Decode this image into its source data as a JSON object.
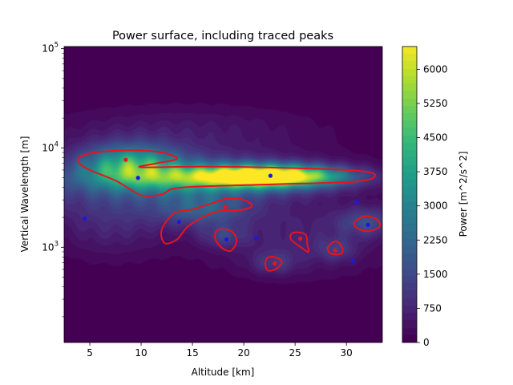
{
  "chart_data": {
    "type": "heatmap",
    "title": "Power surface, including traced peaks",
    "xlabel": "Altitude [km]",
    "ylabel": "Vertical Wavelength [m]",
    "xlim": [
      2.5,
      33.5
    ],
    "ylim": [
      110,
      105000
    ],
    "yscale": "log",
    "x_ticks": [
      5,
      10,
      15,
      20,
      25,
      30
    ],
    "y_ticks": [
      {
        "value": 1000,
        "base": "10",
        "exp": "3"
      },
      {
        "value": 10000,
        "base": "10",
        "exp": "4"
      },
      {
        "value": 100000,
        "base": "10",
        "exp": "5"
      }
    ],
    "grid": false,
    "colorbar": {
      "label": "Power [m^2/s^2]",
      "range": [
        0,
        6500
      ],
      "ticks": [
        0,
        750,
        1500,
        2250,
        3000,
        3750,
        4500,
        5250,
        6000
      ],
      "colormap": "viridis"
    },
    "surface_blobs": [
      {
        "x": 22.5,
        "y": 5200,
        "sx": 4.5,
        "sy": 0.07,
        "amp": 6400
      },
      {
        "x": 17.0,
        "y": 5000,
        "sx": 7.5,
        "sy": 0.1,
        "amp": 3000
      },
      {
        "x": 9.0,
        "y": 6800,
        "sx": 3.2,
        "sy": 0.14,
        "amp": 3300
      },
      {
        "x": 12.0,
        "y": 4600,
        "sx": 10.0,
        "sy": 0.22,
        "amp": 1400
      },
      {
        "x": 16.0,
        "y": 2400,
        "sx": 3.0,
        "sy": 0.12,
        "amp": 1500
      },
      {
        "x": 7.0,
        "y": 1800,
        "sx": 4.0,
        "sy": 0.25,
        "amp": 700
      },
      {
        "x": 25.0,
        "y": 1200,
        "sx": 6.0,
        "sy": 0.25,
        "amp": 700
      },
      {
        "x": 18.0,
        "y": 1300,
        "sx": 1.5,
        "sy": 0.08,
        "amp": 900
      },
      {
        "x": 29.0,
        "y": 950,
        "sx": 1.3,
        "sy": 0.08,
        "amp": 800
      },
      {
        "x": 23.0,
        "y": 700,
        "sx": 1.5,
        "sy": 0.08,
        "amp": 800
      },
      {
        "x": 32.0,
        "y": 1800,
        "sx": 2.0,
        "sy": 0.1,
        "amp": 1300
      },
      {
        "x": 14.0,
        "y": 15000,
        "sx": 9.0,
        "sy": 0.18,
        "amp": 500
      }
    ],
    "traced_peaks_red": [
      {
        "x": 8.5,
        "y": 7600
      },
      {
        "x": 18.2,
        "y": 2550
      },
      {
        "x": 25.5,
        "y": 1220
      },
      {
        "x": 28.9,
        "y": 930
      },
      {
        "x": 23.0,
        "y": 690
      }
    ],
    "traced_peaks_blue": [
      {
        "x": 4.5,
        "y": 1950
      },
      {
        "x": 9.7,
        "y": 5000
      },
      {
        "x": 13.7,
        "y": 1800
      },
      {
        "x": 18.3,
        "y": 1200
      },
      {
        "x": 21.2,
        "y": 1230
      },
      {
        "x": 22.6,
        "y": 5250
      },
      {
        "x": 30.6,
        "y": 730
      },
      {
        "x": 31.0,
        "y": 2850
      },
      {
        "x": 32.1,
        "y": 1680
      }
    ],
    "contours_red": [
      [
        [
          4.0,
          8000
        ],
        [
          5.5,
          9000
        ],
        [
          9.0,
          9500
        ],
        [
          12.0,
          9000
        ],
        [
          13.5,
          7800
        ],
        [
          11.5,
          7000
        ],
        [
          10.0,
          6400
        ],
        [
          16.0,
          6500
        ],
        [
          24.0,
          6300
        ],
        [
          31.0,
          5900
        ],
        [
          32.8,
          5300
        ],
        [
          31.0,
          4600
        ],
        [
          23.0,
          4300
        ],
        [
          14.0,
          4000
        ],
        [
          12.0,
          3400
        ],
        [
          10.2,
          3300
        ],
        [
          9.0,
          3800
        ],
        [
          7.5,
          4700
        ],
        [
          5.0,
          6000
        ],
        [
          4.0,
          7000
        ]
      ],
      [
        [
          13.2,
          2200
        ],
        [
          15.0,
          2400
        ],
        [
          17.0,
          2800
        ],
        [
          18.5,
          3100
        ],
        [
          20.0,
          3000
        ],
        [
          20.8,
          2600
        ],
        [
          19.5,
          2350
        ],
        [
          17.5,
          2300
        ],
        [
          16.0,
          2000
        ],
        [
          14.5,
          1600
        ],
        [
          13.5,
          1200
        ],
        [
          12.3,
          1100
        ],
        [
          12.0,
          1500
        ]
      ],
      [
        [
          17.5,
          1500
        ],
        [
          18.8,
          1450
        ],
        [
          19.3,
          1150
        ],
        [
          18.7,
          920
        ],
        [
          17.8,
          1000
        ],
        [
          17.2,
          1250
        ]
      ],
      [
        [
          24.8,
          1400
        ],
        [
          26.0,
          1350
        ],
        [
          26.2,
          1050
        ],
        [
          26.3,
          900
        ],
        [
          25.7,
          980
        ],
        [
          24.6,
          1200
        ]
      ],
      [
        [
          28.2,
          1000
        ],
        [
          29.0,
          1150
        ],
        [
          29.6,
          980
        ],
        [
          29.5,
          860
        ],
        [
          28.5,
          860
        ]
      ],
      [
        [
          22.3,
          780
        ],
        [
          23.0,
          800
        ],
        [
          23.7,
          720
        ],
        [
          23.3,
          620
        ],
        [
          22.4,
          580
        ],
        [
          22.1,
          680
        ]
      ],
      [
        [
          30.8,
          1800
        ],
        [
          31.8,
          2050
        ],
        [
          33.0,
          1900
        ],
        [
          33.2,
          1600
        ],
        [
          32.0,
          1450
        ],
        [
          30.9,
          1600
        ]
      ]
    ]
  }
}
